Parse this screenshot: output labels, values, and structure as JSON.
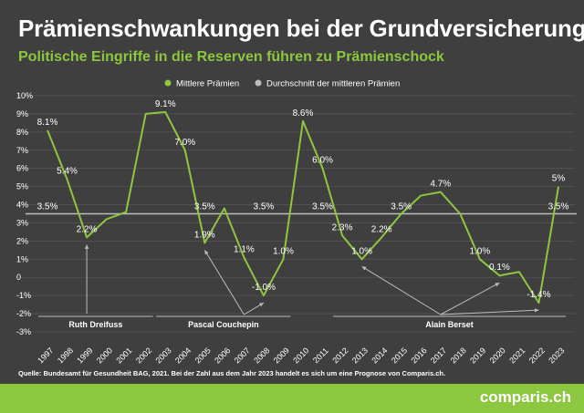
{
  "title": "Prämienschwankungen bei der Grundversicherung",
  "subtitle": "Politische Eingriffe in die Reserven führen zu Prämienschock",
  "source": "Quelle: Bundesamt für Gesundheit BAG, 2021. Bei der Zahl aus dem Jahr 2023 handelt es sich um eine Prognose von Comparis.ch.",
  "brand": "comparis.ch",
  "colors": {
    "background": "#3f3f3f",
    "series": "#8dc63f",
    "average": "#bdbdbd",
    "grid": "#555555",
    "footer": "#8dc63f"
  },
  "chart_data": {
    "type": "line",
    "x": [
      1997,
      1998,
      1999,
      2000,
      2001,
      2002,
      2003,
      2004,
      2005,
      2006,
      2007,
      2008,
      2009,
      2010,
      2011,
      2012,
      2013,
      2014,
      2015,
      2016,
      2017,
      2018,
      2019,
      2020,
      2021,
      2022,
      2023
    ],
    "xlabels": [
      "1997",
      "1998",
      "1999",
      "2000",
      "2001",
      "2002",
      "2003",
      "2004",
      "2005",
      "2006",
      "2007",
      "2008",
      "2009",
      "2010",
      "2011",
      "2012",
      "2013",
      "2014",
      "2015",
      "2016",
      "2017",
      "2018",
      "2019",
      "2020",
      "2021",
      "2022",
      "2023"
    ],
    "series": [
      {
        "name": "Mittlere Prämien",
        "values": [
          8.1,
          5.4,
          2.2,
          3.2,
          3.6,
          9.0,
          9.1,
          7.0,
          1.9,
          3.8,
          1.1,
          -1.0,
          1.0,
          8.6,
          6.0,
          2.3,
          1.0,
          2.2,
          3.5,
          4.5,
          4.7,
          3.5,
          1.0,
          0.1,
          0.3,
          -1.4,
          5.0
        ]
      },
      {
        "name": "Durchschnitt der mittleren Prämien",
        "values": [
          3.5,
          3.5,
          3.5,
          3.5,
          3.5,
          3.5,
          3.5,
          3.5,
          3.5,
          3.5,
          3.5,
          3.5,
          3.5,
          3.5,
          3.5,
          3.5,
          3.5,
          3.5,
          3.5,
          3.5,
          3.5,
          3.5,
          3.5,
          3.5,
          3.5,
          3.5,
          3.5
        ]
      }
    ],
    "data_labels": [
      {
        "x": 1997,
        "y": 8.1,
        "text": "8.1%"
      },
      {
        "x": 1998,
        "y": 5.4,
        "text": "5.4%"
      },
      {
        "x": 1999,
        "y": 2.2,
        "text": "2.2%"
      },
      {
        "x": 2003,
        "y": 9.1,
        "text": "9.1%"
      },
      {
        "x": 2004,
        "y": 7.0,
        "text": "7.0%"
      },
      {
        "x": 2005,
        "y": 1.9,
        "text": "1.9%"
      },
      {
        "x": 2007,
        "y": 1.1,
        "text": "1.1%"
      },
      {
        "x": 2008,
        "y": -1.0,
        "text": "-1.0%"
      },
      {
        "x": 2009,
        "y": 1.0,
        "text": "1.0%"
      },
      {
        "x": 2010,
        "y": 8.6,
        "text": "8.6%"
      },
      {
        "x": 2011,
        "y": 6.0,
        "text": "6.0%"
      },
      {
        "x": 2012,
        "y": 2.3,
        "text": "2.3%"
      },
      {
        "x": 2013,
        "y": 1.0,
        "text": "1.0%"
      },
      {
        "x": 2014,
        "y": 2.2,
        "text": "2.2%"
      },
      {
        "x": 2017,
        "y": 4.7,
        "text": "4.7%"
      },
      {
        "x": 2019,
        "y": 1.0,
        "text": "1.0%"
      },
      {
        "x": 2020,
        "y": 0.1,
        "text": "0.1%"
      },
      {
        "x": 2022,
        "y": -1.4,
        "text": "-1.4%"
      },
      {
        "x": 2023,
        "y": 5.0,
        "text": "5%"
      }
    ],
    "average_labels": [
      {
        "x": 1997,
        "text": "3.5%"
      },
      {
        "x": 2005,
        "text": "3.5%"
      },
      {
        "x": 2008,
        "text": "3.5%"
      },
      {
        "x": 2011,
        "text": "3.5%"
      },
      {
        "x": 2015,
        "text": "3.5%"
      },
      {
        "x": 2023,
        "text": "3.5%"
      }
    ],
    "yticks": [
      10,
      9,
      8,
      7,
      6,
      5,
      4,
      3,
      2,
      1,
      0,
      -1,
      -2,
      -3
    ],
    "ytick_labels": [
      "10%",
      "9%",
      "8%",
      "7%",
      "6%",
      "5%",
      "4%",
      "3%",
      "2%",
      "1%",
      "0",
      "-1%",
      "-2%",
      "-3%"
    ],
    "ylim": [
      -3,
      10
    ],
    "legend": {
      "position": "top-center",
      "entries": [
        "Mittlere Prämien",
        "Durchschnitt der mittleren Prämien"
      ]
    },
    "ministers": [
      {
        "name": "Ruth Dreifuss",
        "from": 1997,
        "to": 2002,
        "arrows_to": [
          1999
        ]
      },
      {
        "name": "Pascal Couchepin",
        "from": 2003,
        "to": 2009,
        "arrows_to": [
          2005,
          2008
        ]
      },
      {
        "name": "Alain Berset",
        "from": 2012,
        "to": 2023,
        "arrows_to": [
          2013,
          2020,
          2022
        ]
      }
    ]
  }
}
